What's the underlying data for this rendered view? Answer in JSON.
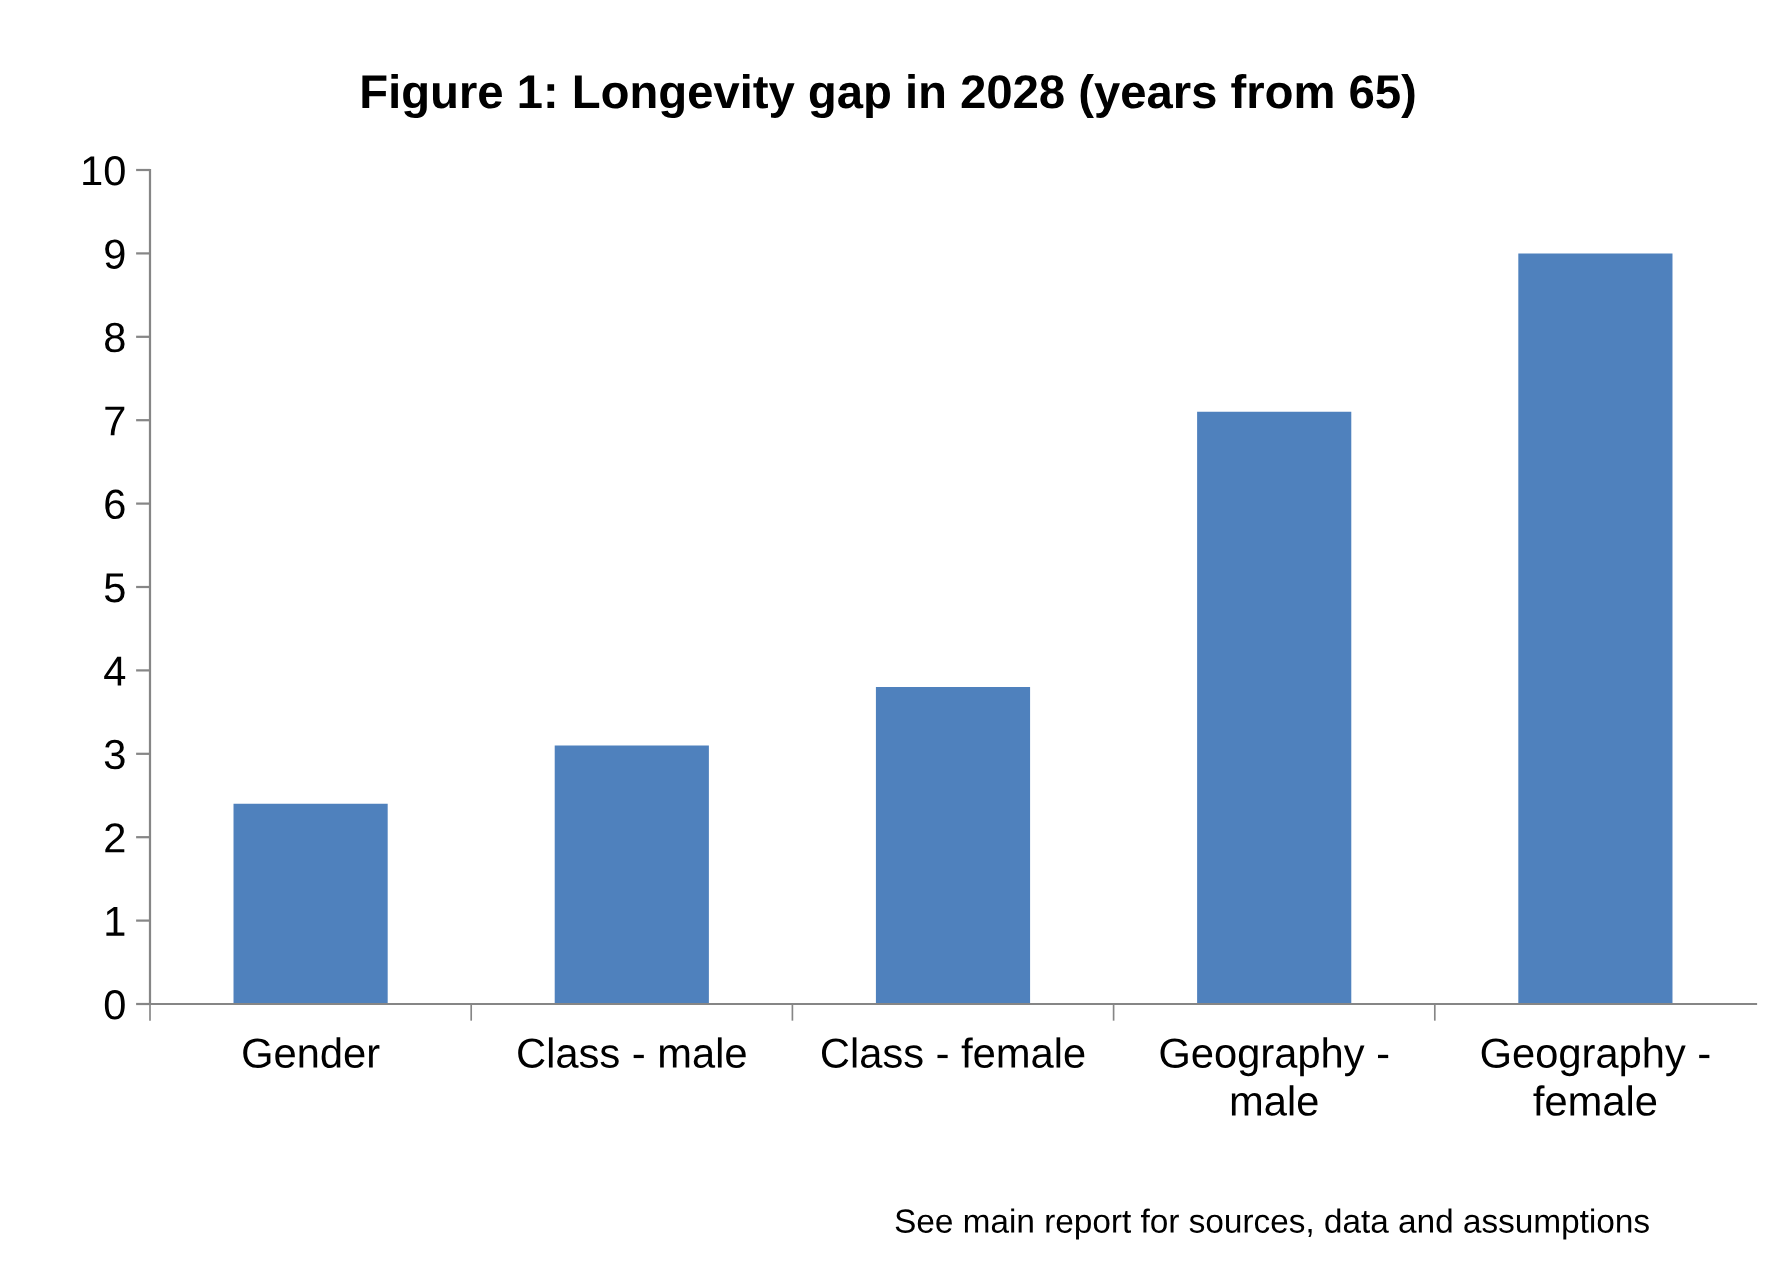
{
  "chart_data": {
    "type": "bar",
    "title": "Figure 1: Longevity gap in 2028 (years from 65)",
    "categories": [
      "Gender",
      "Class - male",
      "Class - female",
      "Geography - male",
      "Geography - female"
    ],
    "values": [
      2.4,
      3.1,
      3.8,
      7.1,
      9.0
    ],
    "color": "#4f81bd",
    "ylim": [
      0,
      10
    ],
    "yticks": [
      0,
      1,
      2,
      3,
      4,
      5,
      6,
      7,
      8,
      9,
      10
    ],
    "grid": false,
    "annotations": [
      "See main report for sources, data and assumptions"
    ]
  }
}
